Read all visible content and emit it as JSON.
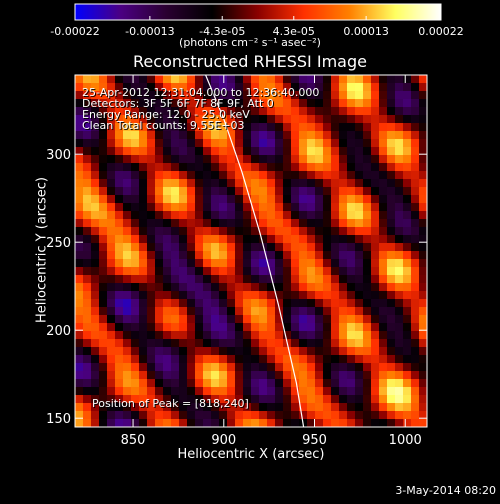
{
  "chart_data": {
    "type": "heatmap",
    "title": "Reconstructed RHESSI Image",
    "xlabel": "Heliocentric X (arcsec)",
    "ylabel": "Heliocentric Y (arcsec)",
    "xlim": [
      818,
      1012
    ],
    "ylim": [
      145,
      345
    ],
    "x_ticks": [
      850,
      900,
      950,
      1000
    ],
    "y_ticks": [
      150,
      200,
      250,
      300
    ],
    "colorbar": {
      "ticks": [
        "-0.00022",
        "-0.00013",
        "-4.3e-05",
        "4.3e-05",
        "0.00013",
        "0.00022"
      ],
      "tick_values": [
        -0.00022,
        -0.00013,
        -4.3e-05,
        4.3e-05,
        0.00013,
        0.00022
      ],
      "range": [
        -0.00022,
        0.00022
      ],
      "unit": "(photons cm⁻² s⁻¹ asec⁻²)",
      "colors": [
        "#0000ff",
        "#4b0082",
        "#2a0030",
        "#000000",
        "#8b0000",
        "#ff3000",
        "#ff8000",
        "#ffff60",
        "#ffffff"
      ]
    },
    "annotations": [
      "25-Apr-2012 12:31:04.000 to 12:36:40.000",
      "Detectors: 3F 5F 6F 7F 8F 9F, Att 0",
      "Energy Range: 12.0 - 25.0 keV",
      "Clean     Total counts: 9.55E+03"
    ],
    "peak_label": "Position of Peak = [818,240]",
    "limb_curve": {
      "x": [
        890,
        900,
        910,
        920,
        930,
        940,
        944
      ],
      "y": [
        345,
        320,
        290,
        255,
        215,
        170,
        145
      ]
    }
  },
  "footer": {
    "date_stamp": "3-May-2014 08:20"
  }
}
